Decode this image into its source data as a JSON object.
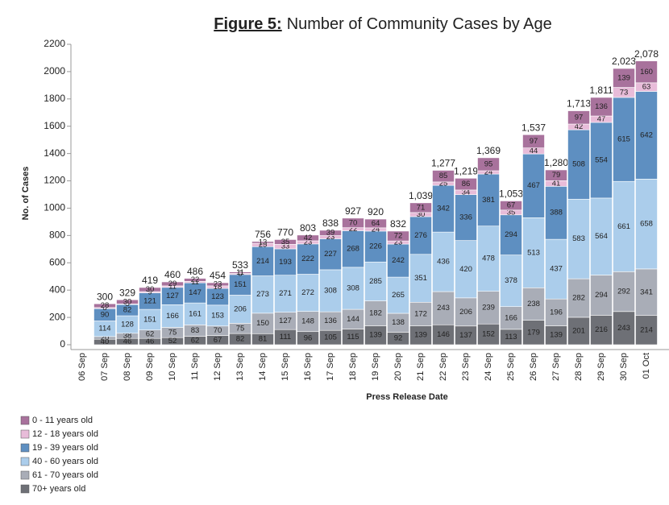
{
  "chart_data": {
    "type": "stacked_bar",
    "title_prefix": "Figure 5:",
    "title": "Number of Community Cases by Age",
    "y_label": "No. of Cases",
    "x_label": "Press Release Date",
    "categories": [
      "06 Sep",
      "07 Sep",
      "08 Sep",
      "09 Sep",
      "10 Sep",
      "11 Sep",
      "12 Sep",
      "13 Sep",
      "14 Sep",
      "15 Sep",
      "16 Sep",
      "17 Sep",
      "18 Sep",
      "19 Sep",
      "20 Sep",
      "21 Sep",
      "22 Sep",
      "23 Sep",
      "24 Sep",
      "25 Sep",
      "26 Sep",
      "27 Sep",
      "28 Sep",
      "29 Sep",
      "30 Sep",
      "01 Oct"
    ],
    "series": [
      {
        "name": "0 - 11 years old",
        "color": "#a8729c",
        "values": [
          null,
          28,
          30,
          30,
          29,
          22,
          23,
          11,
          13,
          35,
          42,
          39,
          70,
          64,
          72,
          71,
          85,
          86,
          95,
          67,
          97,
          79,
          97,
          136,
          139,
          160
        ]
      },
      {
        "name": "12 - 18 years old",
        "color": "#e8bcd9",
        "values": [
          null,
          8,
          5,
          9,
          11,
          11,
          18,
          8,
          25,
          33,
          23,
          23,
          22,
          24,
          23,
          30,
          25,
          34,
          24,
          35,
          44,
          41,
          42,
          47,
          73,
          63
        ]
      },
      {
        "name": "19 - 39 years old",
        "color": "#5e8fc1",
        "values": [
          null,
          90,
          82,
          121,
          127,
          147,
          123,
          151,
          214,
          193,
          222,
          227,
          268,
          226,
          242,
          276,
          342,
          336,
          381,
          294,
          467,
          388,
          508,
          554,
          615,
          642
        ]
      },
      {
        "name": "40 - 60 years old",
        "color": "#abcdeb",
        "values": [
          null,
          114,
          128,
          151,
          166,
          161,
          153,
          206,
          273,
          271,
          272,
          308,
          308,
          285,
          265,
          351,
          436,
          420,
          478,
          378,
          513,
          437,
          583,
          564,
          661,
          658
        ]
      },
      {
        "name": "61 - 70 years old",
        "color": "#a9adb7",
        "values": [
          null,
          20,
          38,
          62,
          75,
          83,
          70,
          75,
          150,
          127,
          148,
          136,
          144,
          182,
          138,
          172,
          243,
          206,
          239,
          166,
          238,
          196,
          282,
          294,
          292,
          341
        ]
      },
      {
        "name": "70+ years old",
        "color": "#6e7076",
        "values": [
          null,
          40,
          46,
          46,
          52,
          62,
          67,
          82,
          81,
          111,
          96,
          105,
          115,
          139,
          92,
          139,
          146,
          137,
          152,
          113,
          179,
          139,
          201,
          216,
          243,
          214
        ]
      }
    ],
    "totals": {
      "values": [
        null,
        300,
        329,
        419,
        460,
        486,
        454,
        533,
        756,
        770,
        803,
        838,
        927,
        920,
        832,
        1039,
        1277,
        1219,
        1369,
        1053,
        1537,
        1280,
        1713,
        1811,
        2023,
        2078
      ],
      "value_labels": [
        null,
        "300",
        "329",
        "419",
        "460",
        "486",
        "454",
        "533",
        "756",
        "770",
        "803",
        "838",
        "927",
        "920",
        "832",
        "1,039",
        "1,277",
        "1,219",
        "1,369",
        "1,053",
        "1,537",
        "1,280",
        "1,713",
        "1,811",
        "2,023",
        "2,078"
      ]
    },
    "ylim": [
      0,
      2200
    ],
    "yticks": [
      0,
      200,
      400,
      600,
      800,
      1000,
      1200,
      1400,
      1600,
      1800,
      2000,
      2200
    ],
    "legend": "bottom-left"
  }
}
